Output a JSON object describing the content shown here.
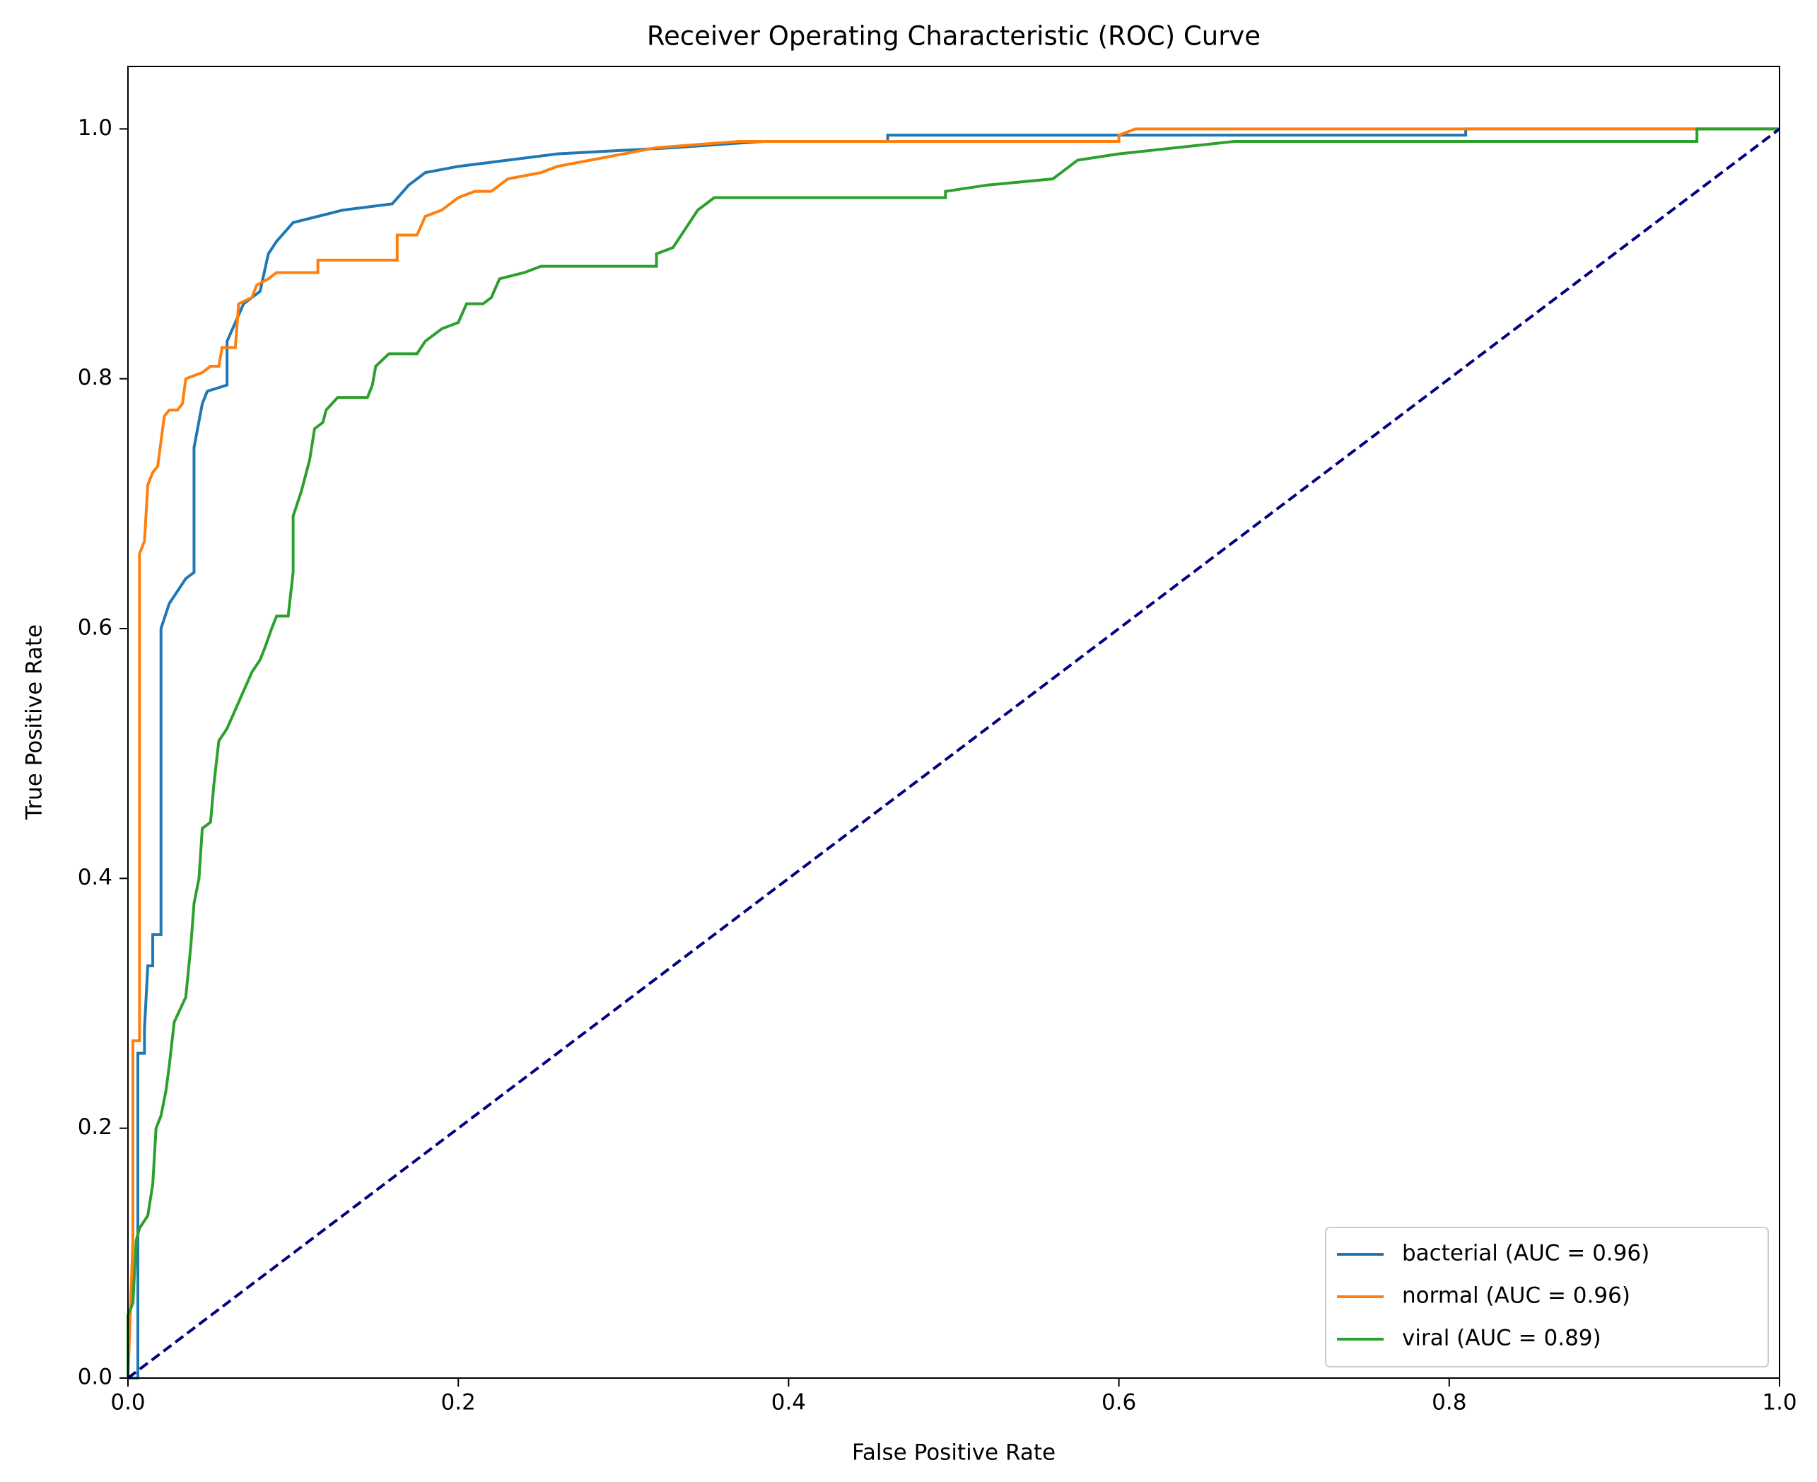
{
  "chart_data": {
    "type": "line",
    "title": "Receiver Operating Characteristic (ROC) Curve",
    "x_label": "False Positive Rate",
    "y_label": "True Positive Rate",
    "xlim": [
      0,
      1
    ],
    "ylim": [
      0,
      1.05
    ],
    "xticks": [
      {
        "value": 0,
        "label": "0.0"
      },
      0.2,
      0.4,
      0.6,
      0.8,
      {
        "value": 1,
        "label": "1.0"
      }
    ],
    "yticks": [
      {
        "value": 0,
        "label": "0.0"
      },
      0.2,
      0.4,
      0.6,
      0.8,
      {
        "value": 1,
        "label": "1.0"
      }
    ],
    "legend": "lower right",
    "series": [
      {
        "name": "bacterial (AUC = 0.96)",
        "color": "#1f77b4",
        "x": [
          0,
          0.006,
          0.006,
          0.006,
          0.01,
          0.01,
          0.012,
          0.015,
          0.015,
          0.02,
          0.02,
          0.025,
          0.03,
          0.035,
          0.04,
          0.04,
          0.045,
          0.048,
          0.06,
          0.06,
          0.065,
          0.07,
          0.08,
          0.085,
          0.09,
          0.1,
          0.115,
          0.13,
          0.16,
          0.17,
          0.18,
          0.2,
          0.23,
          0.26,
          0.33,
          0.385,
          0.46,
          0.46,
          0.81,
          0.81,
          1
        ],
        "values": [
          0,
          0,
          0.145,
          0.26,
          0.26,
          0.28,
          0.33,
          0.33,
          0.355,
          0.355,
          0.6,
          0.62,
          0.63,
          0.64,
          0.645,
          0.745,
          0.78,
          0.79,
          0.795,
          0.83,
          0.845,
          0.86,
          0.87,
          0.9,
          0.91,
          0.925,
          0.93,
          0.935,
          0.94,
          0.955,
          0.965,
          0.97,
          0.975,
          0.98,
          0.985,
          0.99,
          0.99,
          0.995,
          0.995,
          1,
          1
        ]
      },
      {
        "name": "normal (AUC = 0.96)",
        "color": "#ff7f0e",
        "x": [
          0,
          0.003,
          0.003,
          0.007,
          0.007,
          0.01,
          0.012,
          0.015,
          0.018,
          0.022,
          0.025,
          0.03,
          0.033,
          0.035,
          0.045,
          0.05,
          0.055,
          0.057,
          0.065,
          0.067,
          0.075,
          0.078,
          0.085,
          0.09,
          0.115,
          0.115,
          0.163,
          0.163,
          0.175,
          0.18,
          0.19,
          0.2,
          0.21,
          0.22,
          0.23,
          0.25,
          0.26,
          0.28,
          0.3,
          0.32,
          0.37,
          0.6,
          0.6,
          0.61,
          1
        ],
        "values": [
          0,
          0.11,
          0.27,
          0.27,
          0.66,
          0.67,
          0.715,
          0.725,
          0.73,
          0.77,
          0.775,
          0.775,
          0.78,
          0.8,
          0.805,
          0.81,
          0.81,
          0.825,
          0.825,
          0.86,
          0.865,
          0.875,
          0.88,
          0.885,
          0.885,
          0.895,
          0.895,
          0.915,
          0.915,
          0.93,
          0.935,
          0.945,
          0.95,
          0.95,
          0.96,
          0.965,
          0.97,
          0.975,
          0.98,
          0.985,
          0.99,
          0.99,
          0.995,
          1,
          1
        ]
      },
      {
        "name": "viral (AUC = 0.89)",
        "color": "#2ca02c",
        "x": [
          0,
          0,
          0.003,
          0.005,
          0.007,
          0.012,
          0.015,
          0.017,
          0.02,
          0.023,
          0.025,
          0.028,
          0.035,
          0.038,
          0.04,
          0.043,
          0.045,
          0.05,
          0.052,
          0.055,
          0.06,
          0.065,
          0.07,
          0.075,
          0.08,
          0.083,
          0.087,
          0.09,
          0.097,
          0.1,
          0.1,
          0.105,
          0.108,
          0.11,
          0.113,
          0.118,
          0.12,
          0.127,
          0.145,
          0.148,
          0.15,
          0.158,
          0.175,
          0.18,
          0.19,
          0.2,
          0.205,
          0.215,
          0.22,
          0.225,
          0.24,
          0.25,
          0.32,
          0.32,
          0.33,
          0.335,
          0.34,
          0.345,
          0.355,
          0.495,
          0.495,
          0.52,
          0.56,
          0.565,
          0.575,
          0.6,
          0.67,
          0.95,
          0.95,
          1
        ],
        "values": [
          0,
          0.05,
          0.06,
          0.11,
          0.12,
          0.13,
          0.155,
          0.2,
          0.21,
          0.23,
          0.25,
          0.285,
          0.305,
          0.345,
          0.38,
          0.4,
          0.44,
          0.445,
          0.475,
          0.51,
          0.52,
          0.535,
          0.55,
          0.565,
          0.575,
          0.585,
          0.6,
          0.61,
          0.61,
          0.645,
          0.69,
          0.71,
          0.725,
          0.735,
          0.76,
          0.765,
          0.775,
          0.785,
          0.785,
          0.795,
          0.81,
          0.82,
          0.82,
          0.83,
          0.84,
          0.845,
          0.86,
          0.86,
          0.865,
          0.88,
          0.885,
          0.89,
          0.89,
          0.9,
          0.905,
          0.915,
          0.925,
          0.935,
          0.945,
          0.945,
          0.95,
          0.955,
          0.96,
          0.965,
          0.975,
          0.98,
          0.99,
          0.99,
          1,
          1
        ]
      },
      {
        "color": "#000080",
        "linestyle": "dashed",
        "x": [
          0,
          1
        ],
        "values": [
          0,
          1
        ]
      }
    ]
  }
}
